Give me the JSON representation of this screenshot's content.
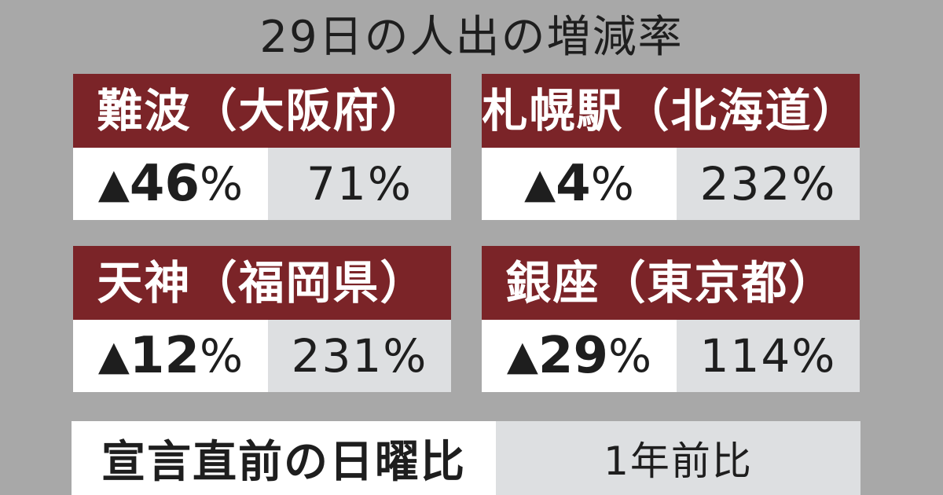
{
  "title": "29日の人出の増減率",
  "cards": [
    {
      "location": "難波（大阪府）",
      "pre_declaration_mark": "▲",
      "pre_declaration_value": "46",
      "pre_declaration_unit": "%",
      "year_ago": "71%"
    },
    {
      "location": "札幌駅（北海道）",
      "pre_declaration_mark": "▲",
      "pre_declaration_value": "4",
      "pre_declaration_unit": "%",
      "year_ago": "232%"
    },
    {
      "location": "天神（福岡県）",
      "pre_declaration_mark": "▲",
      "pre_declaration_value": "12",
      "pre_declaration_unit": "%",
      "year_ago": "231%"
    },
    {
      "location": "銀座（東京都）",
      "pre_declaration_mark": "▲",
      "pre_declaration_value": "29",
      "pre_declaration_unit": "%",
      "year_ago": "114%"
    }
  ],
  "legend": {
    "left": "宣言直前の日曜比",
    "right": "1年前比"
  },
  "colors": {
    "background": "#a8a8a8",
    "header": "#7b2428",
    "white_cell": "#ffffff",
    "grey_cell": "#dddfe1"
  }
}
